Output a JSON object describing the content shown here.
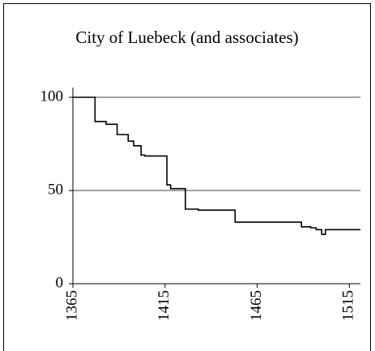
{
  "chart_data": {
    "type": "line",
    "step": true,
    "title": "City of Luebeck (and associates)",
    "x": [
      1365,
      1377,
      1383,
      1389,
      1395,
      1398,
      1402,
      1404,
      1416,
      1418,
      1426,
      1433,
      1453,
      1489,
      1494,
      1497,
      1500,
      1502
    ],
    "series": [
      {
        "color": "#000000",
        "values": [
          100,
          87,
          85.5,
          80,
          76.5,
          74,
          69,
          68.5,
          53,
          51,
          40,
          39.5,
          33,
          30.5,
          30,
          29,
          26.5,
          29
        ]
      }
    ],
    "xlim": [
      1365,
      1521
    ],
    "xticks": [
      1365,
      1415,
      1465,
      1515
    ],
    "ylim": [
      0,
      100
    ],
    "yticks": [
      0,
      50,
      100
    ],
    "grid": true
  }
}
